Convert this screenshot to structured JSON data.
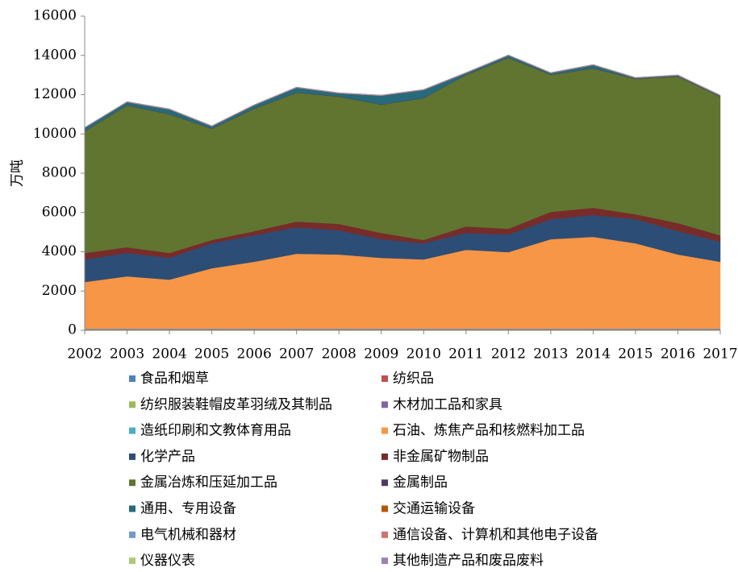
{
  "chart_data": {
    "type": "stacked-area",
    "y_label": "万吨",
    "x": [
      2002,
      2003,
      2004,
      2005,
      2006,
      2007,
      2008,
      2009,
      2010,
      2011,
      2012,
      2013,
      2014,
      2015,
      2016,
      2017
    ],
    "xlim": [
      2002,
      2017
    ],
    "xticks": [
      2002,
      2003,
      2004,
      2005,
      2006,
      2007,
      2008,
      2009,
      2010,
      2011,
      2012,
      2013,
      2014,
      2015,
      2016,
      2017
    ],
    "ylim": [
      0,
      16000
    ],
    "yticks": [
      0,
      2000,
      4000,
      6000,
      8000,
      10000,
      12000,
      14000,
      16000
    ],
    "series": [
      {
        "name": "食品和烟草",
        "color": "#4f81bd",
        "values": [
          40,
          40,
          40,
          40,
          40,
          40,
          40,
          40,
          40,
          40,
          40,
          40,
          40,
          40,
          40,
          40
        ]
      },
      {
        "name": "纺织品",
        "color": "#c0504d",
        "values": [
          10,
          10,
          10,
          10,
          10,
          10,
          10,
          10,
          10,
          10,
          10,
          10,
          10,
          10,
          10,
          10
        ]
      },
      {
        "name": "纺织服装鞋帽皮革羽绒及其制品",
        "color": "#9bbb59",
        "values": [
          5,
          5,
          5,
          5,
          5,
          5,
          5,
          5,
          5,
          5,
          5,
          5,
          5,
          5,
          5,
          5
        ]
      },
      {
        "name": "木材加工品和家具",
        "color": "#8064a2",
        "values": [
          5,
          5,
          5,
          5,
          5,
          5,
          5,
          5,
          5,
          5,
          5,
          5,
          5,
          5,
          5,
          5
        ]
      },
      {
        "name": "造纸印刷和文教体育用品",
        "color": "#4bacc6",
        "values": [
          20,
          20,
          20,
          20,
          20,
          20,
          20,
          20,
          20,
          20,
          20,
          20,
          20,
          20,
          20,
          20
        ]
      },
      {
        "name": "石油、炼焦产品和核燃料加工品",
        "color": "#f79646",
        "values": [
          2380,
          2670,
          2500,
          3080,
          3410,
          3820,
          3780,
          3610,
          3530,
          4020,
          3900,
          4560,
          4680,
          4350,
          3780,
          3410
        ]
      },
      {
        "name": "化学产品",
        "color": "#2c4d75",
        "values": [
          1150,
          1190,
          1110,
          1270,
          1350,
          1350,
          1230,
          950,
          820,
          860,
          900,
          1020,
          1110,
          1230,
          1190,
          1020
        ]
      },
      {
        "name": "非金属矿物制品",
        "color": "#772c2a",
        "values": [
          330,
          290,
          250,
          170,
          210,
          290,
          330,
          320,
          170,
          330,
          290,
          370,
          370,
          250,
          410,
          330
        ]
      },
      {
        "name": "金属冶炼和压延加工品",
        "color": "#5f7530",
        "values": [
          6190,
          7220,
          7060,
          5660,
          6230,
          6560,
          6480,
          6530,
          7220,
          7710,
          8700,
          6980,
          7090,
          6890,
          7460,
          7060
        ]
      },
      {
        "name": "金属制品",
        "color": "#4d3b62",
        "values": [
          20,
          20,
          20,
          20,
          20,
          20,
          20,
          20,
          20,
          20,
          20,
          20,
          20,
          20,
          20,
          20
        ]
      },
      {
        "name": "通用、专用设备",
        "color": "#276a7c",
        "values": [
          150,
          140,
          220,
          100,
          150,
          230,
          140,
          430,
          390,
          70,
          100,
          60,
          150,
          20,
          30,
          20
        ]
      },
      {
        "name": "交通运输设备",
        "color": "#b65708",
        "values": [
          10,
          10,
          10,
          10,
          10,
          10,
          10,
          10,
          10,
          10,
          10,
          10,
          10,
          10,
          10,
          10
        ]
      },
      {
        "name": "电气机械和器材",
        "color": "#729aca",
        "values": [
          10,
          10,
          10,
          10,
          10,
          10,
          10,
          10,
          10,
          10,
          10,
          10,
          10,
          10,
          10,
          10
        ]
      },
      {
        "name": "通信设备、计算机和其他电子设备",
        "color": "#cd7371",
        "values": [
          5,
          5,
          5,
          5,
          5,
          5,
          5,
          5,
          5,
          5,
          5,
          5,
          5,
          5,
          5,
          5
        ]
      },
      {
        "name": "仪器仪表",
        "color": "#afc97a",
        "values": [
          5,
          5,
          5,
          5,
          5,
          5,
          5,
          5,
          5,
          5,
          5,
          5,
          5,
          5,
          5,
          5
        ]
      },
      {
        "name": "其他制造产品和废品废料",
        "color": "#9983b5",
        "values": [
          10,
          10,
          10,
          10,
          10,
          10,
          10,
          10,
          10,
          10,
          10,
          10,
          10,
          10,
          10,
          10
        ]
      }
    ]
  }
}
